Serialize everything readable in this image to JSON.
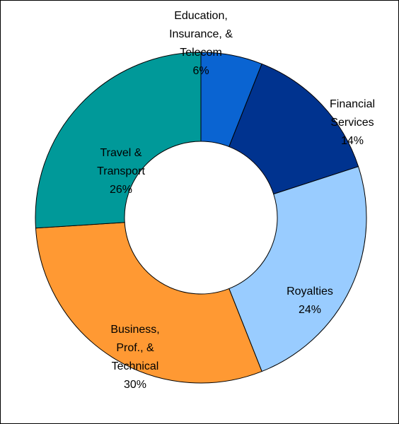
{
  "chart_data": {
    "type": "donut",
    "categories": [
      "Education, Insurance, & Telecom",
      "Financial Services",
      "Royalties",
      "Business, Prof., & Technical",
      "Travel & Transport"
    ],
    "values": [
      6,
      14,
      24,
      30,
      26
    ],
    "value_labels": [
      "6%",
      "14%",
      "24%",
      "30%",
      "26%"
    ],
    "colors": [
      "#0A64D2",
      "#00338F",
      "#99CCFF",
      "#FF9933",
      "#009999"
    ]
  }
}
